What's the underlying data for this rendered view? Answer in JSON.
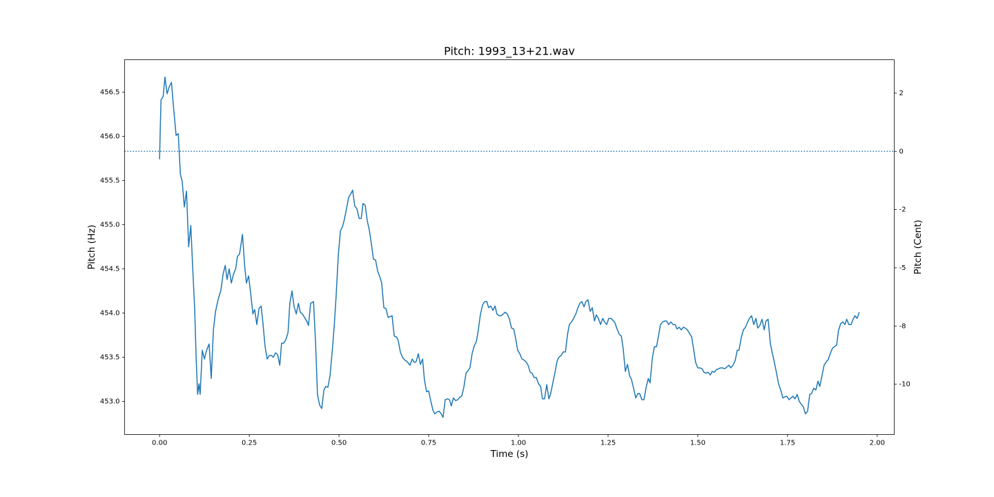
{
  "chart_data": {
    "type": "line",
    "title": "Pitch: 1993_13+21.wav",
    "x_label": "Time (s)",
    "y_label": "Pitch (Hz)",
    "y2_label": "Pitch (Cent)",
    "color": "#1f77b4",
    "xlim": [
      -0.0975,
      2.0475
    ],
    "ylim": [
      452.626,
      456.866
    ],
    "y2lim": [
      -12.16,
      3.935
    ],
    "xticks": [
      {
        "value": 0,
        "label": "0.00"
      },
      {
        "value": 0.25,
        "label": "0.25"
      },
      {
        "value": 0.5,
        "label": "0.50"
      },
      {
        "value": 0.75,
        "label": "0.75"
      },
      {
        "value": 1,
        "label": "1.00"
      },
      {
        "value": 1.25,
        "label": "1.25"
      },
      {
        "value": 1.5,
        "label": "1.50"
      },
      {
        "value": 1.75,
        "label": "1.75"
      },
      {
        "value": 2,
        "label": "2.00"
      }
    ],
    "yticks": [
      {
        "value": 453,
        "label": "453.0"
      },
      453.5,
      {
        "value": 454,
        "label": "454.0"
      },
      454.5,
      {
        "value": 455,
        "label": "455.0"
      },
      455.5,
      {
        "value": 456,
        "label": "456.0"
      },
      456.5
    ],
    "y2ticks": [
      {
        "value": 2.5,
        "label": "2"
      },
      0,
      {
        "value": -2.5,
        "label": "-2"
      },
      -5,
      {
        "value": -7.5,
        "label": "-8"
      },
      -10
    ],
    "reference_line": {
      "axis": "y2",
      "value": 0,
      "style": "dotted"
    },
    "x": [
      0.0,
      0.002,
      0.004,
      0.01,
      0.015,
      0.021,
      0.027,
      0.033,
      0.038,
      0.046,
      0.052,
      0.058,
      0.063,
      0.069,
      0.075,
      0.081,
      0.087,
      0.092,
      0.098,
      0.102,
      0.106,
      0.11,
      0.113,
      0.119,
      0.125,
      0.131,
      0.138,
      0.144,
      0.15,
      0.156,
      0.163,
      0.171,
      0.177,
      0.183,
      0.188,
      0.194,
      0.2,
      0.206,
      0.212,
      0.217,
      0.223,
      0.231,
      0.237,
      0.242,
      0.248,
      0.254,
      0.26,
      0.265,
      0.271,
      0.277,
      0.283,
      0.288,
      0.294,
      0.3,
      0.306,
      0.312,
      0.317,
      0.323,
      0.329,
      0.335,
      0.34,
      0.346,
      0.352,
      0.358,
      0.363,
      0.369,
      0.375,
      0.381,
      0.387,
      0.392,
      0.398,
      0.404,
      0.41,
      0.415,
      0.421,
      0.429,
      0.435,
      0.44,
      0.446,
      0.452,
      0.458,
      0.463,
      0.469,
      0.475,
      0.481,
      0.487,
      0.492,
      0.498,
      0.504,
      0.51,
      0.515,
      0.521,
      0.527,
      0.533,
      0.538,
      0.544,
      0.55,
      0.556,
      0.562,
      0.567,
      0.573,
      0.579,
      0.585,
      0.59,
      0.596,
      0.602,
      0.608,
      0.613,
      0.619,
      0.625,
      0.631,
      0.637,
      0.642,
      0.648,
      0.654,
      0.66,
      0.665,
      0.671,
      0.677,
      0.683,
      0.69,
      0.698,
      0.704,
      0.71,
      0.715,
      0.721,
      0.727,
      0.733,
      0.738,
      0.744,
      0.75,
      0.756,
      0.762,
      0.767,
      0.773,
      0.779,
      0.785,
      0.79,
      0.796,
      0.802,
      0.808,
      0.813,
      0.819,
      0.825,
      0.831,
      0.837,
      0.842,
      0.848,
      0.854,
      0.86,
      0.865,
      0.871,
      0.877,
      0.883,
      0.888,
      0.894,
      0.9,
      0.906,
      0.912,
      0.917,
      0.923,
      0.929,
      0.935,
      0.94,
      0.946,
      0.952,
      0.958,
      0.963,
      0.969,
      0.975,
      0.981,
      0.987,
      0.992,
      0.998,
      1.004,
      1.01,
      1.015,
      1.021,
      1.027,
      1.033,
      1.038,
      1.044,
      1.05,
      1.056,
      1.062,
      1.067,
      1.073,
      1.079,
      1.085,
      1.09,
      1.096,
      1.102,
      1.108,
      1.113,
      1.119,
      1.125,
      1.131,
      1.137,
      1.142,
      1.148,
      1.154,
      1.16,
      1.165,
      1.171,
      1.177,
      1.183,
      1.188,
      1.194,
      1.2,
      1.206,
      1.212,
      1.217,
      1.223,
      1.229,
      1.235,
      1.24,
      1.246,
      1.252,
      1.258,
      1.263,
      1.269,
      1.275,
      1.281,
      1.287,
      1.292,
      1.298,
      1.304,
      1.31,
      1.315,
      1.321,
      1.327,
      1.333,
      1.338,
      1.344,
      1.35,
      1.356,
      1.362,
      1.367,
      1.373,
      1.379,
      1.385,
      1.39,
      1.396,
      1.402,
      1.408,
      1.413,
      1.419,
      1.425,
      1.431,
      1.437,
      1.442,
      1.448,
      1.454,
      1.46,
      1.465,
      1.471,
      1.477,
      1.483,
      1.488,
      1.494,
      1.5,
      1.506,
      1.512,
      1.517,
      1.523,
      1.529,
      1.535,
      1.54,
      1.546,
      1.552,
      1.558,
      1.563,
      1.569,
      1.575,
      1.581,
      1.587,
      1.592,
      1.598,
      1.604,
      1.61,
      1.615,
      1.621,
      1.627,
      1.633,
      1.638,
      1.644,
      1.65,
      1.656,
      1.662,
      1.667,
      1.673,
      1.679,
      1.685,
      1.69,
      1.696,
      1.702,
      1.708,
      1.713,
      1.719,
      1.725,
      1.731,
      1.737,
      1.742,
      1.748,
      1.754,
      1.76,
      1.765,
      1.771,
      1.777,
      1.783,
      1.788,
      1.794,
      1.8,
      1.806,
      1.812,
      1.817,
      1.823,
      1.829,
      1.835,
      1.84,
      1.846,
      1.852,
      1.858,
      1.863,
      1.869,
      1.875,
      1.881,
      1.887,
      1.892,
      1.898,
      1.904,
      1.91,
      1.915,
      1.921,
      1.927,
      1.933,
      1.938,
      1.944,
      1.95
    ],
    "values": [
      455.74,
      456.1,
      456.41,
      456.45,
      456.67,
      456.48,
      456.56,
      456.61,
      456.37,
      456.01,
      456.03,
      455.57,
      455.49,
      455.2,
      455.38,
      454.75,
      454.99,
      454.54,
      454.03,
      453.48,
      453.08,
      453.2,
      453.08,
      453.58,
      453.48,
      453.58,
      453.65,
      453.26,
      453.81,
      454.02,
      454.15,
      454.26,
      454.44,
      454.54,
      454.38,
      454.5,
      454.34,
      454.44,
      454.5,
      454.64,
      454.67,
      454.89,
      454.54,
      454.34,
      454.42,
      454.22,
      453.99,
      454.04,
      453.87,
      454.05,
      454.08,
      453.89,
      453.62,
      453.48,
      453.52,
      453.52,
      453.5,
      453.55,
      453.53,
      453.41,
      453.66,
      453.66,
      453.7,
      453.78,
      454.11,
      454.25,
      454.07,
      453.99,
      454.11,
      454.01,
      453.99,
      453.95,
      453.91,
      453.86,
      454.11,
      454.13,
      453.64,
      453.08,
      452.96,
      452.92,
      453.13,
      453.17,
      453.16,
      453.29,
      453.56,
      453.87,
      454.19,
      454.65,
      454.93,
      454.98,
      455.06,
      455.18,
      455.31,
      455.35,
      455.39,
      455.21,
      455.18,
      455.07,
      455.07,
      455.24,
      455.22,
      455.04,
      454.93,
      454.79,
      454.61,
      454.6,
      454.47,
      454.42,
      454.34,
      454.06,
      454.05,
      453.95,
      453.96,
      453.97,
      453.74,
      453.73,
      453.69,
      453.56,
      453.5,
      453.47,
      453.45,
      453.41,
      453.48,
      453.44,
      453.45,
      453.54,
      453.42,
      453.48,
      453.25,
      453.11,
      453.12,
      453.0,
      452.9,
      452.86,
      452.88,
      452.89,
      452.86,
      452.82,
      453.02,
      453.03,
      453.02,
      452.95,
      453.04,
      453.01,
      453.02,
      453.05,
      453.06,
      453.16,
      453.32,
      453.35,
      453.38,
      453.54,
      453.63,
      453.68,
      453.8,
      453.98,
      454.09,
      454.13,
      454.13,
      454.06,
      454.08,
      454.03,
      454.08,
      453.99,
      453.97,
      453.97,
      453.99,
      454.01,
      453.99,
      453.93,
      453.83,
      453.82,
      453.72,
      453.58,
      453.54,
      453.48,
      453.47,
      453.45,
      453.41,
      453.33,
      453.32,
      453.27,
      453.27,
      453.2,
      453.17,
      453.03,
      453.03,
      453.19,
      453.03,
      453.09,
      453.21,
      453.33,
      453.46,
      453.5,
      453.52,
      453.56,
      453.56,
      453.76,
      453.87,
      453.9,
      453.94,
      453.99,
      454.05,
      454.11,
      454.13,
      454.07,
      454.13,
      454.15,
      454.02,
      454.06,
      453.91,
      453.98,
      453.94,
      453.87,
      453.94,
      453.9,
      453.87,
      453.94,
      453.94,
      453.92,
      453.89,
      453.82,
      453.76,
      453.74,
      453.6,
      453.34,
      453.42,
      453.29,
      453.25,
      453.15,
      453.04,
      453.09,
      453.09,
      453.02,
      453.02,
      453.16,
      453.26,
      453.21,
      453.48,
      453.62,
      453.62,
      453.73,
      453.87,
      453.9,
      453.91,
      453.91,
      453.87,
      453.9,
      453.87,
      453.87,
      453.82,
      453.84,
      453.81,
      453.84,
      453.83,
      453.81,
      453.77,
      453.73,
      453.6,
      453.44,
      453.38,
      453.38,
      453.37,
      453.33,
      453.32,
      453.33,
      453.3,
      453.34,
      453.33,
      453.36,
      453.37,
      453.38,
      453.38,
      453.37,
      453.39,
      453.41,
      453.38,
      453.41,
      453.46,
      453.58,
      453.58,
      453.72,
      453.81,
      453.84,
      453.89,
      453.94,
      453.97,
      453.87,
      453.94,
      453.83,
      453.86,
      453.93,
      453.81,
      453.91,
      453.93,
      453.66,
      453.54,
      453.45,
      453.33,
      453.2,
      453.13,
      453.04,
      453.05,
      453.06,
      453.02,
      453.04,
      453.06,
      453.03,
      453.08,
      453.0,
      452.97,
      452.94,
      452.86,
      452.89,
      453.08,
      453.09,
      453.15,
      453.13,
      453.23,
      453.17,
      453.29,
      453.41,
      453.45,
      453.47,
      453.54,
      453.6,
      453.62,
      453.64,
      453.8,
      453.88,
      453.9,
      453.87,
      453.93,
      453.87,
      453.87,
      453.93,
      453.97,
      453.94,
      454.01
    ]
  }
}
